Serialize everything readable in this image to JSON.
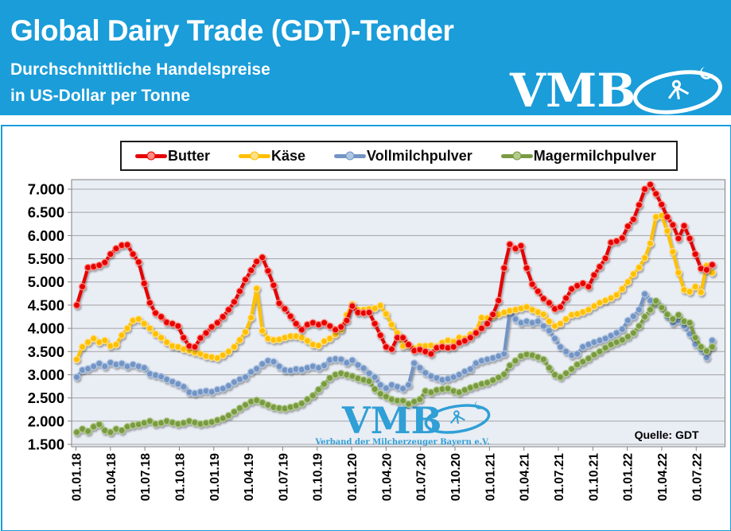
{
  "header": {
    "title": "Global Dairy Trade (GDT)-Tender",
    "subtitle_line1": "Durchschnittliche Handelspreise",
    "subtitle_line2": "in US-Dollar per Tonne",
    "logo_text": "VMB",
    "bg_color": "#1A9DD9"
  },
  "legend": [
    {
      "label": "Butter",
      "color": "#E60000",
      "marker_color": "#FF8A80"
    },
    {
      "label": "Käse",
      "color": "#FFC000",
      "marker_color": "#FFE08A"
    },
    {
      "label": "Vollmilchpulver",
      "color": "#7394C4",
      "marker_color": "#AFC6E2"
    },
    {
      "label": "Magermilchpulver",
      "color": "#7A9A43",
      "marker_color": "#B2CC8A"
    }
  ],
  "watermark": {
    "text": "VMB",
    "subtext": "Verband der Milcherzeuger Bayern e.V.",
    "color": "#2F9FD6"
  },
  "source_note": "Quelle:  GDT",
  "chart_data": {
    "type": "line",
    "title": "Global Dairy Trade (GDT)-Tender — Durchschnittliche Handelspreise in US-Dollar per Tonne",
    "x_note": "zweiwöchentliche GDT-Auktionen, 01.01.2018 bis Okt. 2022 (114 Punkte je Reihe)",
    "x_tick_labels": [
      "01.01.18",
      "01.04.18",
      "01.07.18",
      "01.10.18",
      "01.01.19",
      "01.04.19",
      "01.07.19",
      "01.10.19",
      "01.01.20",
      "01.04.20",
      "01.07.20",
      "01.10.20",
      "01.01.21",
      "01.04.21",
      "01.07.21",
      "01.10.21",
      "01.01.22",
      "01.04.22",
      "01.07.22"
    ],
    "y_tick_values": [
      7000,
      6500,
      6000,
      5500,
      5000,
      4500,
      4000,
      3500,
      3000,
      2500,
      2000,
      1500
    ],
    "y_tick_labels": [
      "7.000",
      "6.500",
      "6.000",
      "5.500",
      "5.000",
      "4.500",
      "4.000",
      "3.500",
      "3.000",
      "2.500",
      "2.000",
      "1.500"
    ],
    "ylim": [
      1500,
      7000
    ],
    "grid": true,
    "legend_position": "top",
    "plot_bg": "#E9EDF4",
    "series": [
      {
        "name": "Butter",
        "color": "#E60000",
        "marker_stroke": "#FF8A80",
        "values": [
          4500,
          4900,
          5310,
          5330,
          5360,
          5420,
          5600,
          5720,
          5790,
          5800,
          5600,
          5430,
          4970,
          4550,
          4330,
          4250,
          4130,
          4100,
          4050,
          3800,
          3620,
          3600,
          3790,
          3900,
          4030,
          4120,
          4250,
          4400,
          4570,
          4800,
          5050,
          5250,
          5440,
          5530,
          5240,
          4930,
          4540,
          4420,
          4260,
          4100,
          3970,
          4080,
          4120,
          4080,
          4120,
          4050,
          3970,
          4030,
          4170,
          4480,
          4340,
          4330,
          4340,
          4100,
          3850,
          3600,
          3550,
          3800,
          3800,
          3650,
          3520,
          3540,
          3500,
          3450,
          3580,
          3600,
          3580,
          3600,
          3690,
          3730,
          3800,
          3900,
          4000,
          4100,
          4300,
          4600,
          5300,
          5810,
          5720,
          5780,
          5300,
          4950,
          4800,
          4640,
          4550,
          4420,
          4460,
          4650,
          4850,
          4920,
          4970,
          4900,
          5150,
          5330,
          5510,
          5850,
          5880,
          5950,
          6200,
          6350,
          6660,
          7000,
          7100,
          6900,
          6670,
          6400,
          6230,
          5940,
          6210,
          5940,
          5600,
          5290,
          5260,
          5370
        ]
      },
      {
        "name": "Käse",
        "color": "#FFC000",
        "marker_stroke": "#FFE08A",
        "values": [
          3330,
          3600,
          3700,
          3780,
          3700,
          3740,
          3620,
          3650,
          3850,
          4000,
          4170,
          4200,
          4100,
          4000,
          3880,
          3800,
          3700,
          3620,
          3600,
          3550,
          3520,
          3480,
          3450,
          3400,
          3380,
          3360,
          3420,
          3500,
          3600,
          3750,
          3920,
          4230,
          4860,
          3950,
          3780,
          3750,
          3760,
          3800,
          3830,
          3830,
          3800,
          3730,
          3650,
          3630,
          3720,
          3780,
          3870,
          3970,
          4290,
          4520,
          4400,
          4400,
          4420,
          4430,
          4490,
          4310,
          4080,
          3900,
          3620,
          3630,
          3570,
          3620,
          3620,
          3630,
          3610,
          3690,
          3740,
          3710,
          3800,
          3780,
          3870,
          3950,
          4230,
          4220,
          4260,
          4300,
          4340,
          4380,
          4400,
          4430,
          4460,
          4400,
          4350,
          4300,
          4150,
          4050,
          4100,
          4200,
          4290,
          4310,
          4350,
          4400,
          4480,
          4550,
          4600,
          4650,
          4720,
          4850,
          5000,
          5170,
          5310,
          5520,
          5830,
          6400,
          6430,
          6100,
          5650,
          5200,
          4830,
          4790,
          4900,
          4780,
          5350,
          5200
        ]
      },
      {
        "name": "Vollmilchpulver",
        "color": "#7394C4",
        "marker_stroke": "#AFC6E2",
        "values": [
          2950,
          3100,
          3130,
          3180,
          3240,
          3180,
          3260,
          3220,
          3240,
          3180,
          3220,
          3180,
          3150,
          3020,
          2990,
          2960,
          2900,
          2850,
          2800,
          2740,
          2620,
          2600,
          2630,
          2650,
          2630,
          2680,
          2700,
          2760,
          2840,
          2900,
          2950,
          3060,
          3130,
          3230,
          3300,
          3280,
          3180,
          3100,
          3090,
          3120,
          3110,
          3150,
          3180,
          3150,
          3200,
          3320,
          3340,
          3330,
          3260,
          3310,
          3210,
          3140,
          3030,
          2950,
          2780,
          2710,
          2780,
          2740,
          2700,
          2780,
          3250,
          3150,
          3040,
          2970,
          2930,
          2890,
          2910,
          2950,
          3000,
          3070,
          3120,
          3250,
          3300,
          3330,
          3360,
          3400,
          3450,
          4360,
          4200,
          4120,
          4150,
          4120,
          4150,
          4050,
          3950,
          3780,
          3600,
          3500,
          3420,
          3450,
          3600,
          3650,
          3700,
          3740,
          3780,
          3840,
          3900,
          3980,
          4170,
          4260,
          4400,
          4740,
          4600,
          4550,
          4470,
          4260,
          4120,
          4170,
          4050,
          3880,
          3660,
          3540,
          3370,
          3740
        ]
      },
      {
        "name": "Magermilchpulver",
        "color": "#7A9A43",
        "marker_stroke": "#B2CC8A",
        "values": [
          1760,
          1830,
          1780,
          1880,
          1930,
          1800,
          1760,
          1830,
          1800,
          1880,
          1910,
          1930,
          1960,
          2000,
          1940,
          1960,
          2000,
          1970,
          1940,
          1960,
          2000,
          1970,
          1940,
          1960,
          1980,
          2020,
          2060,
          2120,
          2200,
          2280,
          2350,
          2420,
          2450,
          2400,
          2350,
          2300,
          2280,
          2270,
          2300,
          2330,
          2380,
          2470,
          2550,
          2680,
          2800,
          2930,
          3000,
          3030,
          3000,
          2970,
          2920,
          2890,
          2860,
          2690,
          2590,
          2530,
          2470,
          2440,
          2440,
          2370,
          2420,
          2470,
          2650,
          2620,
          2670,
          2690,
          2700,
          2650,
          2620,
          2670,
          2720,
          2760,
          2800,
          2830,
          2880,
          2940,
          3010,
          3200,
          3300,
          3400,
          3440,
          3420,
          3380,
          3330,
          3150,
          3000,
          2950,
          3030,
          3120,
          3220,
          3280,
          3350,
          3430,
          3500,
          3580,
          3650,
          3700,
          3750,
          3820,
          3900,
          4050,
          4250,
          4400,
          4590,
          4450,
          4300,
          4200,
          4290,
          4150,
          4120,
          3800,
          3600,
          3510,
          3600
        ]
      }
    ]
  }
}
